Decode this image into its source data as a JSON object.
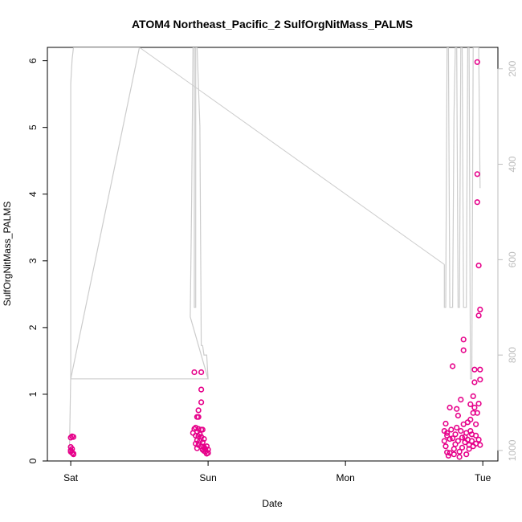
{
  "chart_data": {
    "type": "scatter",
    "title": "ATOM4 Northeast_Pacific_2 SulfOrgNitMass_PALMS",
    "xlabel": "Date",
    "ylabel": "SulfOrgNitMass_PALMS",
    "x_ticks": [
      {
        "label": "Sat",
        "day": 0
      },
      {
        "label": "Sun",
        "day": 1
      },
      {
        "label": "Mon",
        "day": 2
      },
      {
        "label": "Tue",
        "day": 3
      }
    ],
    "xlim_days": [
      -0.17,
      3.11
    ],
    "ylim": [
      0,
      6.2
    ],
    "y_ticks": [
      0,
      1,
      2,
      3,
      4,
      5,
      6
    ],
    "right_axis": {
      "ticks": [
        200,
        400,
        600,
        800,
        1000
      ],
      "range": [
        1022,
        155
      ],
      "reversed": true,
      "color": "#bdbdbd"
    },
    "series": [
      {
        "color": "#e6008a",
        "marker": "open-circle",
        "points": [
          [
            0.0,
            0.35
          ],
          [
            0.01,
            0.37
          ],
          [
            0.02,
            0.36
          ],
          [
            0.0,
            0.21
          ],
          [
            0.01,
            0.18
          ],
          [
            0.0,
            0.14
          ],
          [
            0.01,
            0.12
          ],
          [
            0.02,
            0.1
          ],
          [
            0.0,
            0.16
          ],
          [
            0.02,
            0.11
          ],
          [
            0.9,
            1.33
          ],
          [
            0.95,
            1.33
          ],
          [
            0.95,
            1.07
          ],
          [
            0.95,
            0.88
          ],
          [
            0.93,
            0.76
          ],
          [
            0.92,
            0.66
          ],
          [
            0.93,
            0.66
          ],
          [
            0.9,
            0.48
          ],
          [
            0.91,
            0.5
          ],
          [
            0.93,
            0.48
          ],
          [
            0.95,
            0.47
          ],
          [
            0.96,
            0.47
          ],
          [
            0.92,
            0.44
          ],
          [
            0.89,
            0.42
          ],
          [
            0.94,
            0.4
          ],
          [
            0.91,
            0.38
          ],
          [
            0.93,
            0.37
          ],
          [
            0.95,
            0.36
          ],
          [
            0.97,
            0.33
          ],
          [
            0.92,
            0.31
          ],
          [
            0.94,
            0.3
          ],
          [
            0.96,
            0.28
          ],
          [
            0.91,
            0.26
          ],
          [
            0.93,
            0.24
          ],
          [
            0.95,
            0.22
          ],
          [
            0.97,
            0.21
          ],
          [
            0.99,
            0.22
          ],
          [
            0.98,
            0.18
          ],
          [
            1.0,
            0.17
          ],
          [
            0.92,
            0.19
          ],
          [
            0.96,
            0.17
          ],
          [
            0.98,
            0.14
          ],
          [
            1.0,
            0.12
          ],
          [
            0.99,
            0.11
          ],
          [
            0.97,
            0.15
          ],
          [
            2.72,
            0.45
          ],
          [
            2.73,
            0.56
          ],
          [
            2.74,
            0.42
          ],
          [
            2.72,
            0.3
          ],
          [
            2.73,
            0.22
          ],
          [
            2.74,
            0.13
          ],
          [
            2.75,
            0.08
          ],
          [
            2.76,
            0.33
          ],
          [
            2.76,
            0.12
          ],
          [
            2.77,
            0.47
          ],
          [
            2.78,
            0.34
          ],
          [
            2.79,
            0.18
          ],
          [
            2.79,
            0.1
          ],
          [
            2.8,
            0.25
          ],
          [
            2.8,
            0.4
          ],
          [
            2.81,
            0.5
          ],
          [
            2.81,
            0.78
          ],
          [
            2.82,
            0.68
          ],
          [
            2.82,
            0.3
          ],
          [
            2.83,
            0.14
          ],
          [
            2.83,
            0.06
          ],
          [
            2.84,
            0.45
          ],
          [
            2.84,
            0.92
          ],
          [
            2.85,
            0.35
          ],
          [
            2.85,
            0.2
          ],
          [
            2.86,
            1.66
          ],
          [
            2.86,
            1.82
          ],
          [
            2.86,
            0.55
          ],
          [
            2.87,
            0.36
          ],
          [
            2.87,
            0.28
          ],
          [
            2.88,
            0.42
          ],
          [
            2.88,
            0.1
          ],
          [
            2.89,
            0.58
          ],
          [
            2.89,
            0.32
          ],
          [
            2.9,
            0.24
          ],
          [
            2.9,
            0.18
          ],
          [
            2.91,
            0.85
          ],
          [
            2.91,
            0.62
          ],
          [
            2.91,
            0.45
          ],
          [
            2.92,
            0.4
          ],
          [
            2.92,
            0.3
          ],
          [
            2.93,
            0.22
          ],
          [
            2.93,
            0.72
          ],
          [
            2.93,
            0.97
          ],
          [
            2.94,
            1.37
          ],
          [
            2.94,
            1.18
          ],
          [
            2.94,
            0.8
          ],
          [
            2.95,
            0.55
          ],
          [
            2.95,
            0.38
          ],
          [
            2.95,
            0.26
          ],
          [
            2.96,
            5.98
          ],
          [
            2.96,
            4.3
          ],
          [
            2.96,
            3.88
          ],
          [
            2.97,
            2.93
          ],
          [
            2.97,
            2.18
          ],
          [
            2.98,
            2.27
          ],
          [
            2.98,
            1.37
          ],
          [
            2.98,
            1.22
          ],
          [
            2.97,
            0.86
          ],
          [
            2.96,
            0.72
          ],
          [
            2.97,
            0.32
          ],
          [
            2.98,
            0.24
          ],
          [
            2.78,
            1.42
          ],
          [
            2.76,
            0.8
          ],
          [
            2.74,
            0.38
          ]
        ]
      }
    ],
    "altitude_line": {
      "color": "#cccccc",
      "points": [
        [
          -0.01,
          1008
        ],
        [
          0.0,
          840
        ],
        [
          0.0,
          230
        ],
        [
          0.01,
          180
        ],
        [
          0.02,
          155
        ],
        [
          0.05,
          155
        ],
        [
          0.5,
          155
        ],
        [
          0.5,
          155
        ],
        [
          0.0,
          850
        ],
        [
          0.35,
          850
        ],
        [
          0.87,
          850
        ],
        [
          1.0,
          850
        ],
        [
          0.87,
          720
        ],
        [
          0.88,
          480
        ],
        [
          0.89,
          155
        ],
        [
          0.9,
          155
        ],
        [
          0.9,
          700
        ],
        [
          0.91,
          700
        ],
        [
          0.91,
          155
        ],
        [
          0.92,
          155
        ],
        [
          0.94,
          320
        ],
        [
          0.95,
          780
        ],
        [
          0.96,
          780
        ],
        [
          0.97,
          800
        ],
        [
          0.99,
          800
        ],
        [
          1.0,
          850
        ]
      ],
      "long_segment": [
        [
          0.5,
          155
        ],
        [
          2.72,
          610
        ]
      ],
      "tue_segment": [
        [
          2.72,
          610
        ],
        [
          2.72,
          700
        ],
        [
          2.73,
          700
        ],
        [
          2.74,
          155
        ],
        [
          2.75,
          155
        ],
        [
          2.76,
          700
        ],
        [
          2.78,
          700
        ],
        [
          2.79,
          300
        ],
        [
          2.8,
          155
        ],
        [
          2.81,
          155
        ],
        [
          2.82,
          700
        ],
        [
          2.83,
          700
        ],
        [
          2.84,
          155
        ],
        [
          2.85,
          155
        ],
        [
          2.86,
          700
        ],
        [
          2.88,
          700
        ],
        [
          2.89,
          155
        ],
        [
          2.9,
          155
        ],
        [
          2.91,
          850
        ],
        [
          2.92,
          850
        ],
        [
          2.93,
          155
        ],
        [
          2.94,
          155
        ],
        [
          2.96,
          155
        ],
        [
          2.97,
          155
        ],
        [
          2.98,
          450
        ]
      ]
    }
  }
}
